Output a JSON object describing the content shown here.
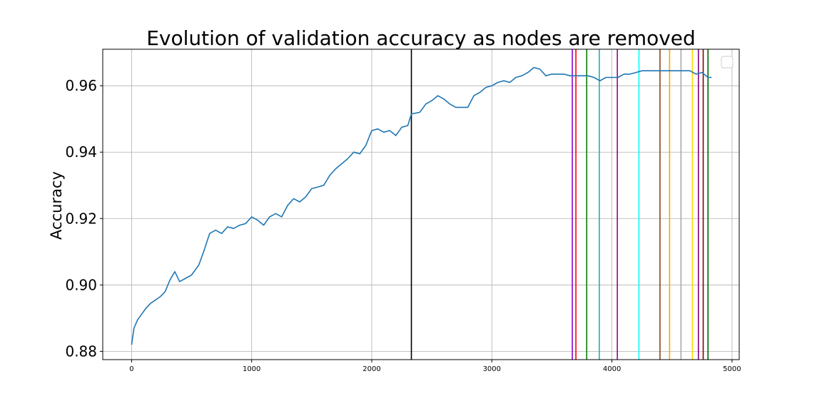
{
  "chart_data": {
    "type": "line",
    "title": "Evolution of validation accuracy as nodes are removed",
    "xlabel": "",
    "ylabel": "Accuracy",
    "xlim": [
      -240,
      5060
    ],
    "ylim": [
      0.8775,
      0.971
    ],
    "x_ticks": [
      0,
      1000,
      2000,
      3000,
      4000,
      5000
    ],
    "x_tick_labels": [
      "0",
      "1000",
      "2000",
      "3000",
      "4000",
      "5000"
    ],
    "y_ticks": [
      0.88,
      0.9,
      0.92,
      0.94,
      0.96
    ],
    "y_tick_labels": [
      "0.88",
      "0.90",
      "0.92",
      "0.94",
      "0.96"
    ],
    "grid": true,
    "legend": {
      "placement": "top-right",
      "entries": []
    },
    "series": [
      {
        "color": "#1f77b4",
        "points": [
          [
            0,
            0.882
          ],
          [
            20,
            0.887
          ],
          [
            50,
            0.8895
          ],
          [
            80,
            0.891
          ],
          [
            120,
            0.893
          ],
          [
            160,
            0.8945
          ],
          [
            200,
            0.8955
          ],
          [
            240,
            0.8965
          ],
          [
            280,
            0.898
          ],
          [
            320,
            0.9015
          ],
          [
            360,
            0.904
          ],
          [
            400,
            0.901
          ],
          [
            450,
            0.902
          ],
          [
            500,
            0.903
          ],
          [
            560,
            0.906
          ],
          [
            600,
            0.91
          ],
          [
            650,
            0.9155
          ],
          [
            700,
            0.9165
          ],
          [
            750,
            0.9155
          ],
          [
            800,
            0.9175
          ],
          [
            850,
            0.917
          ],
          [
            900,
            0.918
          ],
          [
            950,
            0.9185
          ],
          [
            1000,
            0.9205
          ],
          [
            1050,
            0.9195
          ],
          [
            1100,
            0.918
          ],
          [
            1150,
            0.9205
          ],
          [
            1200,
            0.9215
          ],
          [
            1250,
            0.9205
          ],
          [
            1300,
            0.924
          ],
          [
            1350,
            0.926
          ],
          [
            1400,
            0.925
          ],
          [
            1450,
            0.9265
          ],
          [
            1500,
            0.929
          ],
          [
            1550,
            0.9295
          ],
          [
            1600,
            0.93
          ],
          [
            1650,
            0.933
          ],
          [
            1700,
            0.935
          ],
          [
            1750,
            0.9365
          ],
          [
            1800,
            0.938
          ],
          [
            1850,
            0.94
          ],
          [
            1900,
            0.9395
          ],
          [
            1950,
            0.942
          ],
          [
            2000,
            0.9465
          ],
          [
            2050,
            0.947
          ],
          [
            2100,
            0.946
          ],
          [
            2150,
            0.9465
          ],
          [
            2200,
            0.945
          ],
          [
            2250,
            0.9475
          ],
          [
            2300,
            0.948
          ],
          [
            2330,
            0.9515
          ],
          [
            2400,
            0.952
          ],
          [
            2450,
            0.9545
          ],
          [
            2500,
            0.9555
          ],
          [
            2550,
            0.957
          ],
          [
            2600,
            0.956
          ],
          [
            2650,
            0.9545
          ],
          [
            2700,
            0.9535
          ],
          [
            2750,
            0.9535
          ],
          [
            2800,
            0.9535
          ],
          [
            2850,
            0.957
          ],
          [
            2900,
            0.958
          ],
          [
            2950,
            0.9595
          ],
          [
            3000,
            0.96
          ],
          [
            3050,
            0.961
          ],
          [
            3100,
            0.9615
          ],
          [
            3150,
            0.961
          ],
          [
            3200,
            0.9625
          ],
          [
            3250,
            0.963
          ],
          [
            3300,
            0.964
          ],
          [
            3350,
            0.9655
          ],
          [
            3400,
            0.965
          ],
          [
            3450,
            0.963
          ],
          [
            3500,
            0.9635
          ],
          [
            3550,
            0.9635
          ],
          [
            3600,
            0.9635
          ],
          [
            3650,
            0.963
          ],
          [
            3700,
            0.963
          ],
          [
            3750,
            0.963
          ],
          [
            3800,
            0.963
          ],
          [
            3850,
            0.9625
          ],
          [
            3900,
            0.9615
          ],
          [
            3950,
            0.9625
          ],
          [
            4000,
            0.9625
          ],
          [
            4050,
            0.9625
          ],
          [
            4100,
            0.9635
          ],
          [
            4150,
            0.9635
          ],
          [
            4200,
            0.964
          ],
          [
            4250,
            0.9645
          ],
          [
            4300,
            0.9645
          ],
          [
            4350,
            0.9645
          ],
          [
            4400,
            0.9645
          ],
          [
            4450,
            0.9645
          ],
          [
            4500,
            0.9645
          ],
          [
            4550,
            0.9645
          ],
          [
            4600,
            0.9645
          ],
          [
            4650,
            0.9645
          ],
          [
            4700,
            0.9635
          ],
          [
            4750,
            0.964
          ],
          [
            4800,
            0.9625
          ],
          [
            4830,
            0.9625
          ]
        ]
      }
    ],
    "vertical_lines": [
      {
        "x": 2330,
        "color": "#000000"
      },
      {
        "x": 3670,
        "color": "#9400d3"
      },
      {
        "x": 3700,
        "color": "#ff0000"
      },
      {
        "x": 3790,
        "color": "#008000"
      },
      {
        "x": 3895,
        "color": "#20b2aa"
      },
      {
        "x": 4045,
        "color": "#9b009b"
      },
      {
        "x": 4225,
        "color": "#00ffff"
      },
      {
        "x": 4400,
        "color": "#8b4513"
      },
      {
        "x": 4480,
        "color": "#ffa500"
      },
      {
        "x": 4575,
        "color": "#a9a9a9"
      },
      {
        "x": 4670,
        "color": "#ffd700"
      },
      {
        "x": 4720,
        "color": "#800080"
      },
      {
        "x": 4760,
        "color": "#8b0000"
      },
      {
        "x": 4800,
        "color": "#006400"
      }
    ]
  }
}
